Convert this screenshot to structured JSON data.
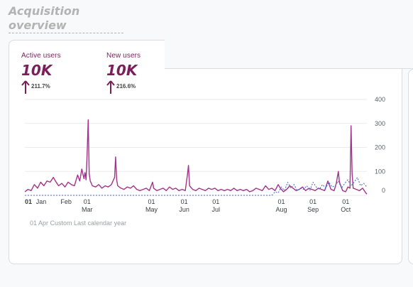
{
  "heading": "Acquisition overview",
  "metrics": [
    {
      "label": "Active users",
      "value": "10K",
      "change": "211.7%"
    },
    {
      "label": "New users",
      "value": "10K",
      "change": "216.6%"
    }
  ],
  "colors": {
    "active": "#a3338a",
    "new": "#4a6fd1",
    "brand": "#7b1f5a"
  },
  "footnote": "01 Apr Custom Last calendar year",
  "chart_data": {
    "type": "line",
    "ylim": [
      0,
      400
    ],
    "y_ticks": [
      0,
      100,
      200,
      300,
      400
    ],
    "x_ticks": [
      {
        "day": 1,
        "top": "01",
        "bottom": "Jan"
      },
      {
        "day": 32,
        "top": "",
        "bottom": "Feb"
      },
      {
        "day": 60,
        "top": "01",
        "bottom": "Mar"
      },
      {
        "day": 121,
        "top": "01",
        "bottom": "May"
      },
      {
        "day": 152,
        "top": "01",
        "bottom": "Jun"
      },
      {
        "day": 182,
        "top": "01",
        "bottom": "Jul"
      },
      {
        "day": 244,
        "top": "01",
        "bottom": "Aug"
      },
      {
        "day": 274,
        "top": "01",
        "bottom": "Sep"
      },
      {
        "day": 305,
        "top": "01",
        "bottom": "Oct"
      }
    ],
    "x_range": [
      1,
      325
    ],
    "series": [
      {
        "name": "Active users",
        "key": "active",
        "values": [
          [
            1,
            15
          ],
          [
            4,
            25
          ],
          [
            7,
            20
          ],
          [
            10,
            45
          ],
          [
            13,
            30
          ],
          [
            16,
            55
          ],
          [
            19,
            40
          ],
          [
            22,
            60
          ],
          [
            25,
            55
          ],
          [
            28,
            75
          ],
          [
            30,
            60
          ],
          [
            33,
            40
          ],
          [
            36,
            50
          ],
          [
            39,
            35
          ],
          [
            42,
            55
          ],
          [
            45,
            45
          ],
          [
            48,
            40
          ],
          [
            51,
            85
          ],
          [
            53,
            60
          ],
          [
            55,
            110
          ],
          [
            57,
            70
          ],
          [
            58,
            95
          ],
          [
            59,
            65
          ],
          [
            60,
            175
          ],
          [
            61,
            315
          ],
          [
            62,
            90
          ],
          [
            63,
            60
          ],
          [
            65,
            40
          ],
          [
            68,
            35
          ],
          [
            71,
            45
          ],
          [
            74,
            30
          ],
          [
            77,
            40
          ],
          [
            80,
            35
          ],
          [
            83,
            45
          ],
          [
            86,
            75
          ],
          [
            87,
            160
          ],
          [
            88,
            65
          ],
          [
            89,
            40
          ],
          [
            92,
            30
          ],
          [
            95,
            25
          ],
          [
            98,
            35
          ],
          [
            101,
            30
          ],
          [
            104,
            40
          ],
          [
            107,
            25
          ],
          [
            110,
            20
          ],
          [
            113,
            25
          ],
          [
            116,
            30
          ],
          [
            119,
            20
          ],
          [
            122,
            55
          ],
          [
            123,
            30
          ],
          [
            126,
            20
          ],
          [
            129,
            25
          ],
          [
            132,
            30
          ],
          [
            135,
            20
          ],
          [
            138,
            35
          ],
          [
            141,
            25
          ],
          [
            144,
            30
          ],
          [
            147,
            20
          ],
          [
            150,
            25
          ],
          [
            153,
            20
          ],
          [
            155,
            85
          ],
          [
            156,
            125
          ],
          [
            157,
            40
          ],
          [
            160,
            25
          ],
          [
            163,
            20
          ],
          [
            166,
            30
          ],
          [
            169,
            25
          ],
          [
            172,
            20
          ],
          [
            175,
            30
          ],
          [
            178,
            25
          ],
          [
            181,
            30
          ],
          [
            184,
            20
          ],
          [
            187,
            25
          ],
          [
            190,
            20
          ],
          [
            193,
            25
          ],
          [
            196,
            20
          ],
          [
            199,
            30
          ],
          [
            202,
            20
          ],
          [
            205,
            25
          ],
          [
            208,
            20
          ],
          [
            211,
            25
          ],
          [
            214,
            15
          ],
          [
            217,
            20
          ],
          [
            220,
            30
          ],
          [
            223,
            25
          ],
          [
            226,
            20
          ],
          [
            229,
            40
          ],
          [
            232,
            25
          ],
          [
            235,
            30
          ],
          [
            238,
            20
          ],
          [
            241,
            45
          ],
          [
            243,
            30
          ],
          [
            246,
            15
          ],
          [
            249,
            25
          ],
          [
            252,
            40
          ],
          [
            255,
            30
          ],
          [
            258,
            20
          ],
          [
            261,
            25
          ],
          [
            264,
            35
          ],
          [
            267,
            20
          ],
          [
            270,
            30
          ],
          [
            273,
            25
          ],
          [
            276,
            20
          ],
          [
            279,
            30
          ],
          [
            282,
            25
          ],
          [
            285,
            20
          ],
          [
            288,
            60
          ],
          [
            291,
            25
          ],
          [
            294,
            20
          ],
          [
            296,
            50
          ],
          [
            298,
            100
          ],
          [
            299,
            55
          ],
          [
            302,
            20
          ],
          [
            305,
            15
          ],
          [
            307,
            35
          ],
          [
            309,
            30
          ],
          [
            310,
            290
          ],
          [
            311,
            90
          ],
          [
            312,
            30
          ],
          [
            315,
            25
          ],
          [
            318,
            20
          ],
          [
            321,
            30
          ],
          [
            324,
            10
          ],
          [
            325,
            5
          ]
        ]
      },
      {
        "name": "New users",
        "key": "new",
        "values": [
          [
            1,
            0
          ],
          [
            235,
            0
          ],
          [
            238,
            15
          ],
          [
            241,
            10
          ],
          [
            244,
            35
          ],
          [
            247,
            20
          ],
          [
            250,
            55
          ],
          [
            253,
            30
          ],
          [
            256,
            45
          ],
          [
            259,
            20
          ],
          [
            262,
            30
          ],
          [
            265,
            25
          ],
          [
            268,
            40
          ],
          [
            271,
            20
          ],
          [
            274,
            55
          ],
          [
            277,
            35
          ],
          [
            280,
            25
          ],
          [
            283,
            45
          ],
          [
            286,
            30
          ],
          [
            289,
            55
          ],
          [
            292,
            35
          ],
          [
            295,
            40
          ],
          [
            298,
            60
          ],
          [
            301,
            30
          ],
          [
            304,
            50
          ],
          [
            307,
            65
          ],
          [
            310,
            40
          ],
          [
            313,
            55
          ],
          [
            316,
            75
          ],
          [
            319,
            40
          ],
          [
            322,
            50
          ],
          [
            325,
            35
          ]
        ]
      }
    ]
  }
}
